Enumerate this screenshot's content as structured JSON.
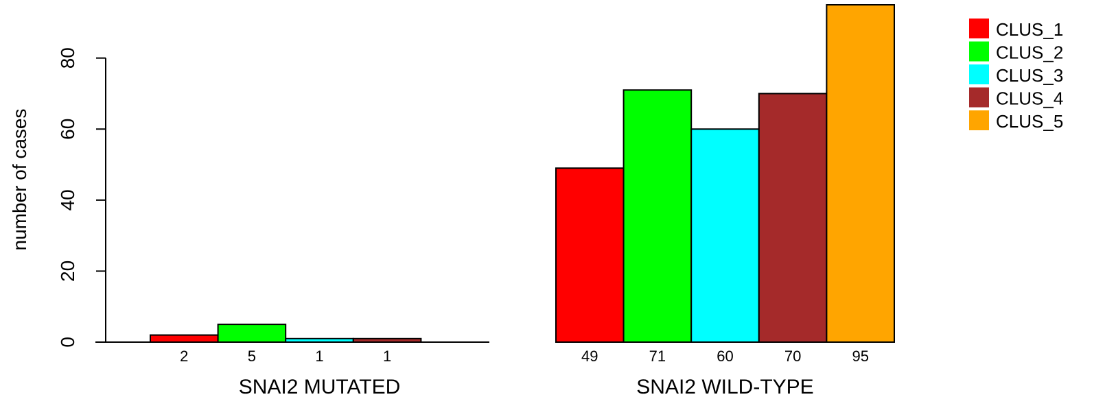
{
  "chart_data": {
    "type": "bar",
    "ylabel": "number of cases",
    "ylim": [
      0,
      95
    ],
    "yticks": [
      0,
      20,
      40,
      60,
      80
    ],
    "series": [
      {
        "name": "CLUS_1",
        "color": "#ff0000"
      },
      {
        "name": "CLUS_2",
        "color": "#00ff00"
      },
      {
        "name": "CLUS_3",
        "color": "#00ffff"
      },
      {
        "name": "CLUS_4",
        "color": "#a52a2a"
      },
      {
        "name": "CLUS_5",
        "color": "#ffa500"
      }
    ],
    "groups": [
      {
        "label": "SNAI2 MUTATED",
        "values": [
          2,
          5,
          1,
          1,
          0
        ],
        "value_labels": [
          "2",
          "5",
          "1",
          "1",
          ""
        ]
      },
      {
        "label": "SNAI2 WILD-TYPE",
        "values": [
          49,
          71,
          60,
          70,
          95
        ],
        "value_labels": [
          "49",
          "71",
          "60",
          "70",
          "95"
        ]
      }
    ],
    "legend_position": "top-right"
  }
}
